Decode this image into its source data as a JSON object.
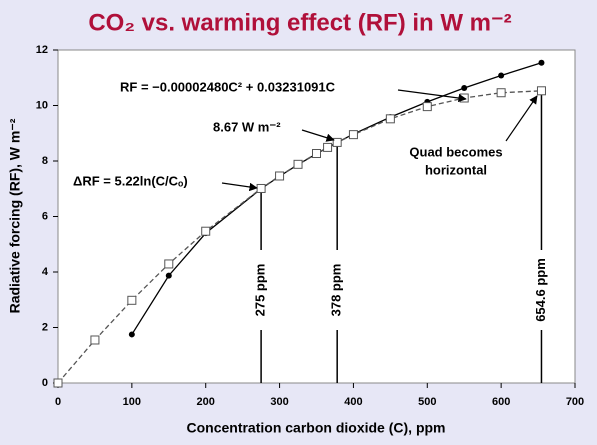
{
  "chart_data": {
    "type": "line",
    "title": "CO₂ vs. warming effect (RF) in W m⁻²",
    "x_label": "Concentration carbon dioxide (C), ppm",
    "y_label": "Radiative forcing (RF), W m⁻²",
    "xlim": [
      0,
      700
    ],
    "xticks": [
      0,
      100,
      200,
      300,
      400,
      500,
      600,
      700
    ],
    "ylim": [
      0,
      12
    ],
    "yticks": [
      0,
      2,
      4,
      6,
      8,
      10,
      12
    ],
    "series": [
      {
        "name": "ΔRF = 5.22ln(C/Cₒ)",
        "color": "#000000",
        "marker": "circle",
        "dash": false,
        "x": [
          100,
          150,
          200,
          275,
          300,
          325,
          350,
          365,
          378,
          400,
          450,
          500,
          550,
          600,
          654.6
        ],
        "values": [
          1.75,
          3.87,
          5.4,
          7.0,
          7.45,
          7.87,
          8.26,
          8.48,
          8.67,
          8.97,
          9.58,
          10.13,
          10.63,
          11.08,
          11.54
        ]
      },
      {
        "name": "RF = −0.00002480C² + 0.03231091C",
        "color": "#555555",
        "marker": "square",
        "dash": true,
        "x": [
          0,
          50,
          100,
          150,
          200,
          275,
          300,
          325,
          350,
          365,
          378,
          400,
          450,
          500,
          550,
          600,
          654.6
        ],
        "values": [
          0,
          1.55,
          2.98,
          4.29,
          5.47,
          7.01,
          7.46,
          7.88,
          8.27,
          8.49,
          8.67,
          8.95,
          9.52,
          9.96,
          10.27,
          10.46,
          10.53
        ]
      }
    ],
    "annotations": [
      "8.67 W m⁻²",
      "Quad becomes",
      "horizontal"
    ],
    "vlines": [
      {
        "x": 275,
        "label": "275 ppm"
      },
      {
        "x": 378,
        "label": "378 ppm"
      },
      {
        "x": 654.6,
        "label": "654.6 ppm"
      }
    ]
  }
}
